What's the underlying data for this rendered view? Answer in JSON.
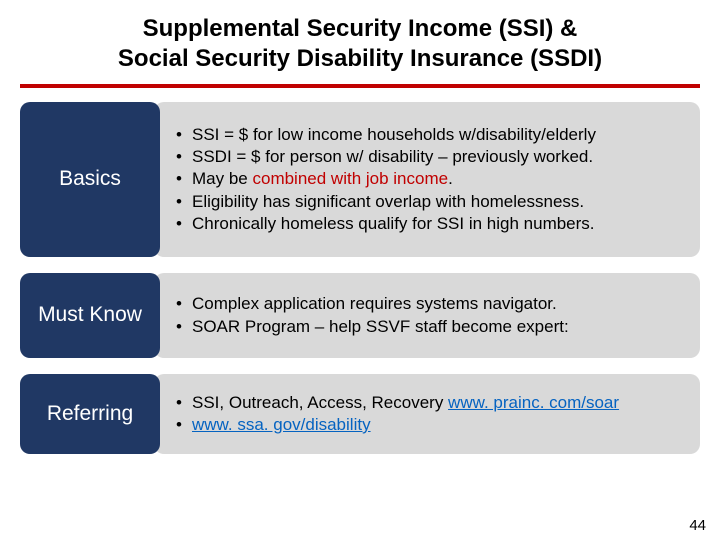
{
  "page": {
    "title_line1": "Supplemental Security Income (SSI) &",
    "title_line2": "Social Security Disability Insurance (SSDI)",
    "page_number": "44"
  },
  "colors": {
    "label_bg": "#203864",
    "bullets_bg": "#d9d9d9",
    "divider": "#c00000",
    "highlight": "#c00000",
    "link": "#0563c1",
    "text": "#000000"
  },
  "rows": [
    {
      "label": "Basics",
      "bullets": [
        {
          "text": "SSI = $ for  low income households w/disability/elderly"
        },
        {
          "text": "SSDI = $ for person w/ disability – previously worked."
        },
        {
          "prefix": "May be ",
          "highlight": "combined with job income",
          "suffix": "."
        },
        {
          "text": "Eligibility has significant overlap with homelessness."
        },
        {
          "text": "Chronically homeless qualify for SSI in high numbers."
        }
      ]
    },
    {
      "label": "Must Know",
      "bullets": [
        {
          "text": "Complex application requires systems navigator."
        },
        {
          "text": "SOAR Program – help SSVF staff become expert:"
        }
      ]
    },
    {
      "label": "Referring",
      "bullets": [
        {
          "prefix": "SSI, Outreach, Access, Recovery ",
          "link": "www. prainc. com/soar"
        },
        {
          "link": "www. ssa. gov/disability"
        }
      ]
    }
  ]
}
